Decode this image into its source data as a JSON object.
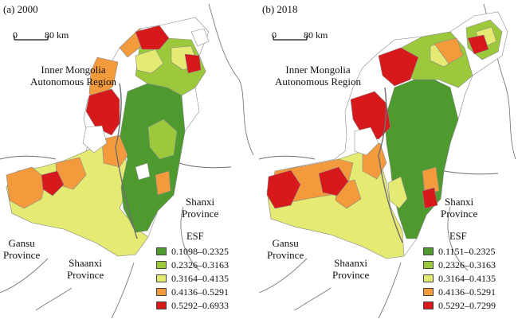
{
  "colors": {
    "class1": "#4e9a2f",
    "class2": "#9cc93c",
    "class3": "#e5ea72",
    "class4": "#f29a3c",
    "class5": "#d7191c",
    "no_data": "#ffffff",
    "river": "#7a7a7a",
    "boundary": "#6f6f6f"
  },
  "scale_bar": {
    "zero": "0",
    "length": "80 km"
  },
  "legend_title": "ESF",
  "panels": [
    {
      "title": "(a) 2000",
      "labels": {
        "inner_mongolia": [
          "Inner Mongolia",
          "Autonomous Region"
        ],
        "shanxi": [
          "Shanxi",
          "Province"
        ],
        "gansu": [
          "Gansu",
          "Province"
        ],
        "shaanxi": [
          "Shaanxi",
          "Province"
        ]
      },
      "legend": [
        {
          "range": "0.1098–0.2325",
          "color_key": "class1"
        },
        {
          "range": "0.2326–0.3163",
          "color_key": "class2"
        },
        {
          "range": "0.3164–0.4135",
          "color_key": "class3"
        },
        {
          "range": "0.4136–0.5291",
          "color_key": "class4"
        },
        {
          "range": "0.5292–0.6933",
          "color_key": "class5"
        }
      ]
    },
    {
      "title": "(b) 2018",
      "labels": {
        "inner_mongolia": [
          "Inner Mongolia",
          "Autonomous Region"
        ],
        "shanxi": [
          "Shanxi",
          "Province"
        ],
        "gansu": [
          "Gansu",
          "Province"
        ],
        "shaanxi": [
          "Shaanxi",
          "Province"
        ]
      },
      "legend": [
        {
          "range": "0.1151–0.2325",
          "color_key": "class1"
        },
        {
          "range": "0.2326–0.3163",
          "color_key": "class2"
        },
        {
          "range": "0.3164–0.4135",
          "color_key": "class3"
        },
        {
          "range": "0.4136–0.5291",
          "color_key": "class4"
        },
        {
          "range": "0.5292–0.7299",
          "color_key": "class5"
        }
      ]
    }
  ]
}
